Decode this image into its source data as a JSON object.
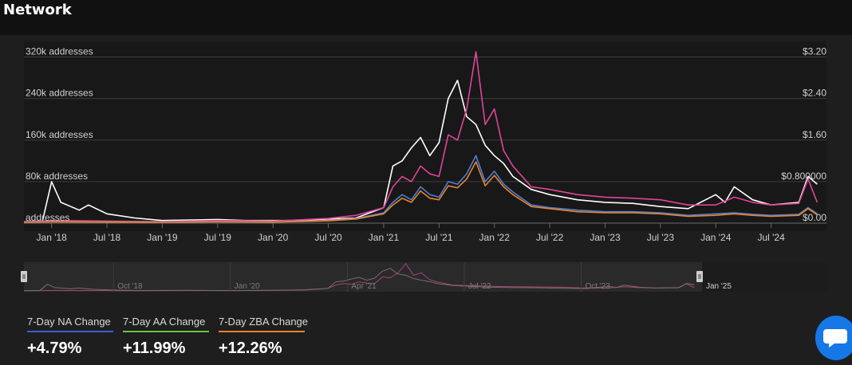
{
  "header": {
    "title": "Network"
  },
  "chart_data": {
    "type": "line",
    "x_range": [
      "2017-10",
      "2025-01"
    ],
    "y_left": {
      "ticks": [
        0,
        80000,
        160000,
        240000,
        320000
      ],
      "tick_labels": [
        "addresses",
        "80k addresses",
        "160k addresses",
        "240k addresses",
        "320k addresses"
      ],
      "range": [
        0,
        330000
      ]
    },
    "y_right": {
      "ticks": [
        0,
        0.8,
        1.6,
        2.4,
        3.2
      ],
      "tick_labels": [
        "$0.00",
        "$0.800000",
        "$1.60",
        "$2.40",
        "$3.20"
      ],
      "range": [
        0,
        3.3
      ]
    },
    "x_tick_labels": [
      "Jan '18",
      "Jul '18",
      "Jan '19",
      "Jul '19",
      "Jan '20",
      "Jul '20",
      "Jan '21",
      "Jul '21",
      "Jan '22",
      "Jul '22",
      "Jan '23",
      "Jul '23",
      "Jan '24",
      "Jul '24"
    ],
    "x_tick_dates": [
      "2018-01",
      "2018-07",
      "2019-01",
      "2019-07",
      "2020-01",
      "2020-07",
      "2021-01",
      "2021-07",
      "2022-01",
      "2022-07",
      "2023-01",
      "2023-07",
      "2024-01",
      "2024-07"
    ],
    "grid": true,
    "series": [
      {
        "axis": "right",
        "color": "#ffffff",
        "points": [
          [
            "2017-10",
            0.02
          ],
          [
            "2017-12",
            0.03
          ],
          [
            "2018-01",
            0.8
          ],
          [
            "2018-02",
            0.4
          ],
          [
            "2018-04",
            0.25
          ],
          [
            "2018-05",
            0.35
          ],
          [
            "2018-07",
            0.18
          ],
          [
            "2018-10",
            0.1
          ],
          [
            "2019-01",
            0.05
          ],
          [
            "2019-04",
            0.06
          ],
          [
            "2019-07",
            0.07
          ],
          [
            "2019-10",
            0.05
          ],
          [
            "2020-01",
            0.05
          ],
          [
            "2020-04",
            0.05
          ],
          [
            "2020-07",
            0.08
          ],
          [
            "2020-10",
            0.1
          ],
          [
            "2021-01",
            0.3
          ],
          [
            "2021-02",
            1.1
          ],
          [
            "2021-03",
            1.2
          ],
          [
            "2021-04",
            1.45
          ],
          [
            "2021-05",
            1.65
          ],
          [
            "2021-06",
            1.3
          ],
          [
            "2021-07",
            1.55
          ],
          [
            "2021-08",
            2.4
          ],
          [
            "2021-09",
            2.75
          ],
          [
            "2021-10",
            2.05
          ],
          [
            "2021-11",
            1.9
          ],
          [
            "2021-12",
            1.5
          ],
          [
            "2022-01",
            1.3
          ],
          [
            "2022-02",
            1.15
          ],
          [
            "2022-03",
            0.9
          ],
          [
            "2022-05",
            0.65
          ],
          [
            "2022-07",
            0.55
          ],
          [
            "2022-10",
            0.45
          ],
          [
            "2023-01",
            0.4
          ],
          [
            "2023-04",
            0.38
          ],
          [
            "2023-07",
            0.32
          ],
          [
            "2023-10",
            0.28
          ],
          [
            "2024-01",
            0.55
          ],
          [
            "2024-02",
            0.4
          ],
          [
            "2024-03",
            0.7
          ],
          [
            "2024-05",
            0.45
          ],
          [
            "2024-07",
            0.35
          ],
          [
            "2024-10",
            0.4
          ],
          [
            "2024-11",
            0.9
          ],
          [
            "2024-12",
            0.75
          ]
        ]
      },
      {
        "axis": "left",
        "color": "#e0449a",
        "points": [
          [
            "2017-10",
            3000
          ],
          [
            "2018-01",
            5000
          ],
          [
            "2018-07",
            4000
          ],
          [
            "2019-01",
            3000
          ],
          [
            "2019-07",
            5000
          ],
          [
            "2020-01",
            4000
          ],
          [
            "2020-07",
            9000
          ],
          [
            "2020-10",
            15000
          ],
          [
            "2021-01",
            30000
          ],
          [
            "2021-02",
            70000
          ],
          [
            "2021-03",
            90000
          ],
          [
            "2021-04",
            80000
          ],
          [
            "2021-05",
            110000
          ],
          [
            "2021-06",
            95000
          ],
          [
            "2021-07",
            90000
          ],
          [
            "2021-08",
            170000
          ],
          [
            "2021-09",
            160000
          ],
          [
            "2021-10",
            220000
          ],
          [
            "2021-11",
            330000
          ],
          [
            "2021-12",
            190000
          ],
          [
            "2022-01",
            220000
          ],
          [
            "2022-02",
            140000
          ],
          [
            "2022-03",
            110000
          ],
          [
            "2022-05",
            70000
          ],
          [
            "2022-07",
            65000
          ],
          [
            "2022-10",
            55000
          ],
          [
            "2023-01",
            50000
          ],
          [
            "2023-04",
            48000
          ],
          [
            "2023-07",
            45000
          ],
          [
            "2023-10",
            35000
          ],
          [
            "2024-01",
            35000
          ],
          [
            "2024-03",
            50000
          ],
          [
            "2024-05",
            40000
          ],
          [
            "2024-07",
            35000
          ],
          [
            "2024-10",
            38000
          ],
          [
            "2024-11",
            85000
          ],
          [
            "2024-12",
            40000
          ]
        ]
      },
      {
        "axis": "left",
        "color": "#4f7fd6",
        "points": [
          [
            "2017-10",
            2000
          ],
          [
            "2018-01",
            3000
          ],
          [
            "2018-07",
            2500
          ],
          [
            "2019-01",
            2000
          ],
          [
            "2019-07",
            3000
          ],
          [
            "2020-01",
            2500
          ],
          [
            "2020-07",
            5000
          ],
          [
            "2020-10",
            9000
          ],
          [
            "2021-01",
            20000
          ],
          [
            "2021-02",
            40000
          ],
          [
            "2021-03",
            55000
          ],
          [
            "2021-04",
            45000
          ],
          [
            "2021-05",
            70000
          ],
          [
            "2021-06",
            55000
          ],
          [
            "2021-07",
            50000
          ],
          [
            "2021-08",
            80000
          ],
          [
            "2021-09",
            75000
          ],
          [
            "2021-10",
            95000
          ],
          [
            "2021-11",
            130000
          ],
          [
            "2021-12",
            80000
          ],
          [
            "2022-01",
            100000
          ],
          [
            "2022-02",
            75000
          ],
          [
            "2022-03",
            60000
          ],
          [
            "2022-05",
            35000
          ],
          [
            "2022-07",
            30000
          ],
          [
            "2022-10",
            25000
          ],
          [
            "2023-01",
            22000
          ],
          [
            "2023-04",
            22000
          ],
          [
            "2023-07",
            20000
          ],
          [
            "2023-10",
            15000
          ],
          [
            "2024-01",
            18000
          ],
          [
            "2024-03",
            20000
          ],
          [
            "2024-05",
            17000
          ],
          [
            "2024-07",
            15000
          ],
          [
            "2024-10",
            17000
          ],
          [
            "2024-11",
            30000
          ],
          [
            "2024-12",
            18000
          ]
        ]
      },
      {
        "axis": "left",
        "color": "#e8842c",
        "points": [
          [
            "2017-10",
            1500
          ],
          [
            "2018-01",
            2500
          ],
          [
            "2018-07",
            2000
          ],
          [
            "2019-01",
            1500
          ],
          [
            "2019-07",
            2500
          ],
          [
            "2020-01",
            2000
          ],
          [
            "2020-07",
            4500
          ],
          [
            "2020-10",
            8000
          ],
          [
            "2021-01",
            18000
          ],
          [
            "2021-02",
            35000
          ],
          [
            "2021-03",
            48000
          ],
          [
            "2021-04",
            40000
          ],
          [
            "2021-05",
            62000
          ],
          [
            "2021-06",
            48000
          ],
          [
            "2021-07",
            45000
          ],
          [
            "2021-08",
            72000
          ],
          [
            "2021-09",
            68000
          ],
          [
            "2021-10",
            85000
          ],
          [
            "2021-11",
            118000
          ],
          [
            "2021-12",
            72000
          ],
          [
            "2022-01",
            92000
          ],
          [
            "2022-02",
            70000
          ],
          [
            "2022-03",
            55000
          ],
          [
            "2022-05",
            32000
          ],
          [
            "2022-07",
            28000
          ],
          [
            "2022-10",
            22000
          ],
          [
            "2023-01",
            20000
          ],
          [
            "2023-04",
            20000
          ],
          [
            "2023-07",
            18000
          ],
          [
            "2023-10",
            13000
          ],
          [
            "2024-01",
            15000
          ],
          [
            "2024-03",
            18000
          ],
          [
            "2024-05",
            15000
          ],
          [
            "2024-07",
            13000
          ],
          [
            "2024-10",
            15000
          ],
          [
            "2024-11",
            28000
          ],
          [
            "2024-12",
            16000
          ]
        ]
      }
    ]
  },
  "navigator": {
    "labels": [
      "Oct '18",
      "Jan '20",
      "Apr '21",
      "Jul '22",
      "Oct '23",
      "Jan '25"
    ],
    "label_dates": [
      "2018-10",
      "2020-01",
      "2021-04",
      "2022-07",
      "2023-10",
      "2025-01"
    ]
  },
  "stats": [
    {
      "label": "7-Day NA Change",
      "value": "+4.79%",
      "color": "#3a5fd9"
    },
    {
      "label": "7-Day AA Change",
      "value": "+11.99%",
      "color": "#6cc24a"
    },
    {
      "label": "7-Day ZBA Change",
      "value": "+12.26%",
      "color": "#e8842c"
    }
  ],
  "chat": {
    "icon": "chat-bubble-icon"
  }
}
